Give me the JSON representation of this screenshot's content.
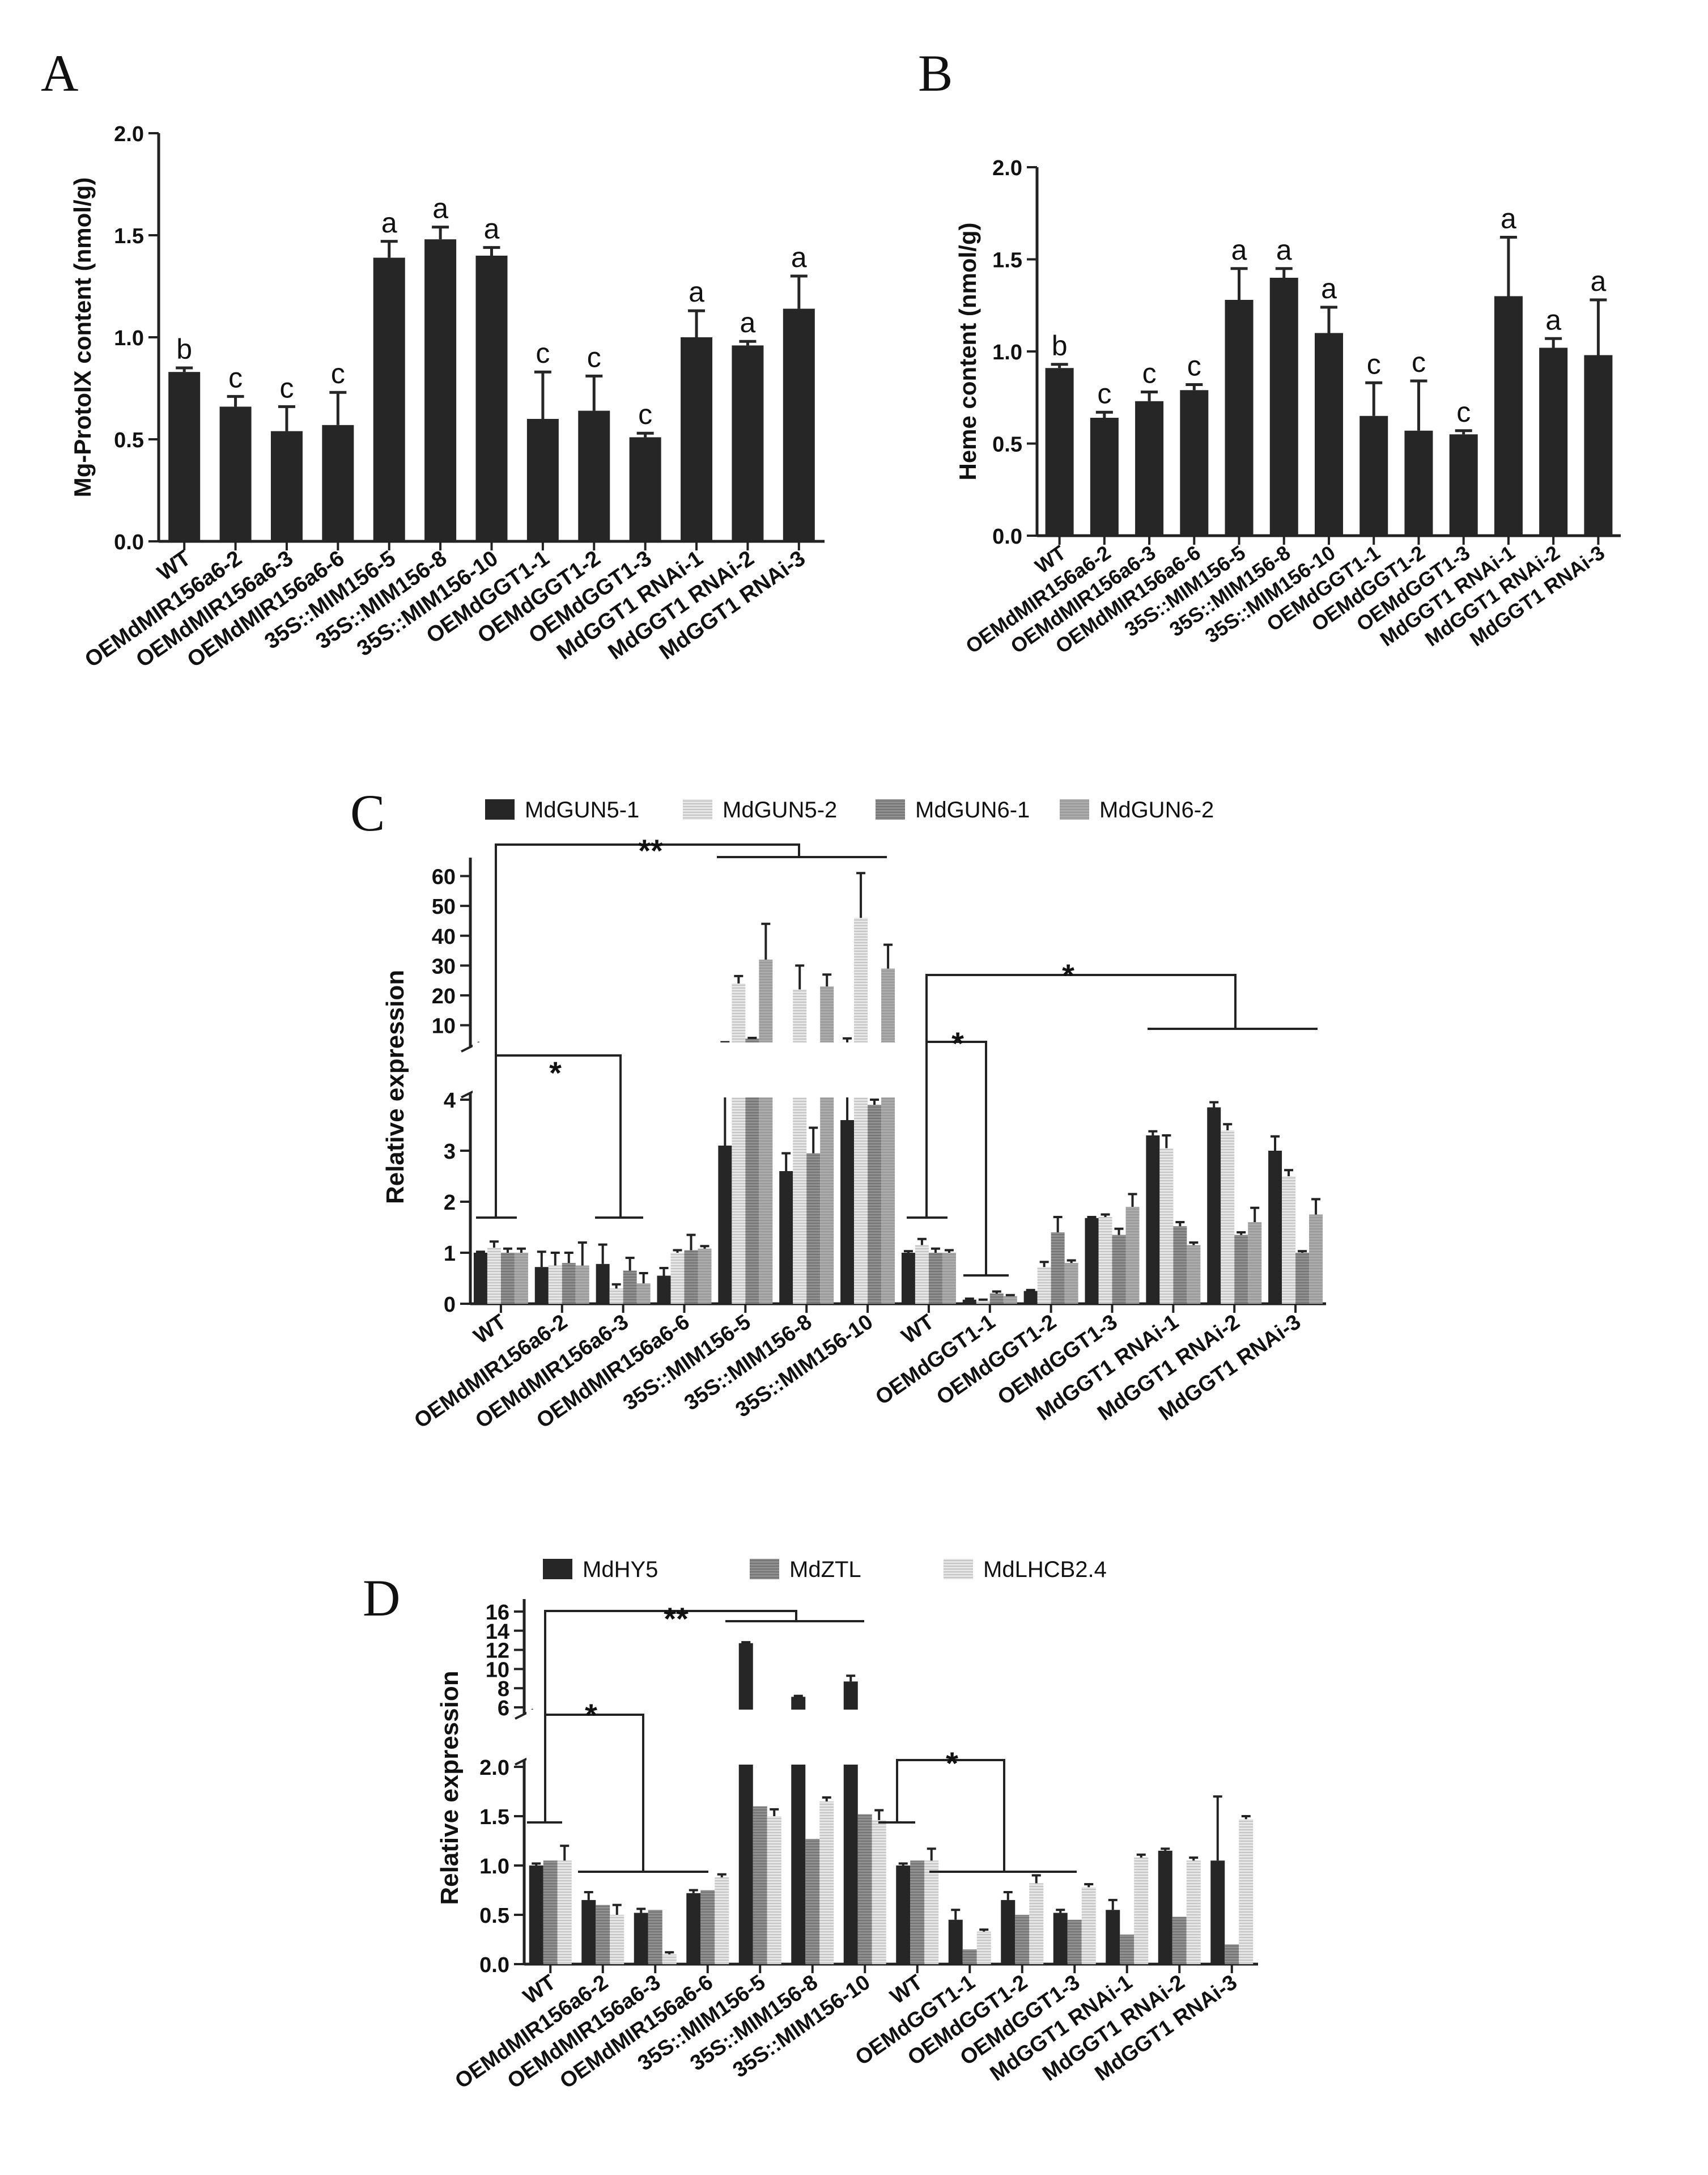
{
  "panels": {
    "A": "A",
    "B": "B",
    "C": "C",
    "D": "D"
  },
  "colors": {
    "dark": "#262626",
    "light": "#dadada",
    "mid": "#8a8a8a",
    "grey": "#a6a6a6"
  },
  "chart_data": [
    {
      "id": "A",
      "type": "bar",
      "ylabel": "Mg-ProtoIX content (nmol/g)",
      "ylim": [
        0,
        2.0
      ],
      "yticks": [
        "0.0",
        "0.5",
        "1.0",
        "1.5",
        "2.0"
      ],
      "categories": [
        "WT",
        "OEMdMIR156a6-2",
        "OEMdMIR156a6-3",
        "OEMdMIR156a6-6",
        "35S::MIM156-5",
        "35S::MIM156-8",
        "35S::MIM156-10",
        "OEMdGGT1-1",
        "OEMdGGT1-2",
        "OEMdGGT1-3",
        "MdGGT1 RNAi-1",
        "MdGGT1 RNAi-2",
        "MdGGT1 RNAi-3"
      ],
      "values": [
        0.83,
        0.66,
        0.54,
        0.57,
        1.39,
        1.48,
        1.4,
        0.6,
        0.64,
        0.51,
        1.0,
        0.96,
        1.14
      ],
      "errors": [
        0.02,
        0.05,
        0.12,
        0.16,
        0.08,
        0.06,
        0.04,
        0.23,
        0.17,
        0.02,
        0.13,
        0.02,
        0.16
      ],
      "letters": [
        "b",
        "c",
        "c",
        "c",
        "a",
        "a",
        "a",
        "c",
        "c",
        "c",
        "a",
        "a",
        "a"
      ]
    },
    {
      "id": "B",
      "type": "bar",
      "ylabel": "Heme content (nmol/g)",
      "ylim": [
        0,
        2.0
      ],
      "yticks": [
        "0.0",
        "0.5",
        "1.0",
        "1.5",
        "2.0"
      ],
      "categories": [
        "WT",
        "OEMdMIR156a6-2",
        "OEMdMIR156a6-3",
        "OEMdMIR156a6-6",
        "35S::MIM156-5",
        "35S::MIM156-8",
        "35S::MIM156-10",
        "OEMdGGT1-1",
        "OEMdGGT1-2",
        "OEMdGGT1-3",
        "MdGGT1 RNAi-1",
        "MdGGT1 RNAi-2",
        "MdGGT1 RNAi-3"
      ],
      "values": [
        0.91,
        0.64,
        0.73,
        0.79,
        1.28,
        1.4,
        1.1,
        0.65,
        0.57,
        0.55,
        1.3,
        1.02,
        0.98
      ],
      "errors": [
        0.02,
        0.03,
        0.05,
        0.03,
        0.17,
        0.05,
        0.14,
        0.18,
        0.27,
        0.02,
        0.32,
        0.05,
        0.3
      ],
      "letters": [
        "b",
        "c",
        "c",
        "c",
        "a",
        "a",
        "a",
        "c",
        "c",
        "c",
        "a",
        "a",
        "a"
      ]
    },
    {
      "id": "C",
      "type": "bar",
      "ylabel": "Relative expression",
      "legend": [
        "MdGUN5-1",
        "MdGUN5-2",
        "MdGUN6-1",
        "MdGUN6-2"
      ],
      "yticks_lower": [
        "0",
        "1",
        "2",
        "3",
        "4"
      ],
      "yticks_upper": [
        "10",
        "20",
        "30",
        "40",
        "50",
        "60"
      ],
      "categories": [
        "WT",
        "OEMdMIR156a6-2",
        "OEMdMIR156a6-3",
        "OEMdMIR156a6-6",
        "35S::MIM156-5",
        "35S::MIM156-8",
        "35S::MIM156-10",
        "WT",
        "OEMdGGT1-1",
        "OEMdGGT1-2",
        "OEMdGGT1-3",
        "MdGGT1 RNAi-1",
        "MdGGT1 RNAi-2",
        "MdGGT1 RNAi-3"
      ],
      "series": [
        {
          "name": "MdGUN5-1",
          "values": [
            1.0,
            0.72,
            0.78,
            0.55,
            3.1,
            2.6,
            3.6,
            1.0,
            0.08,
            0.25,
            1.68,
            3.3,
            3.85,
            3.0
          ],
          "errors": [
            0.02,
            0.3,
            0.38,
            0.15,
            1.2,
            0.35,
            2.0,
            0.03,
            0.02,
            0.02,
            0.02,
            0.08,
            0.1,
            0.28
          ]
        },
        {
          "name": "MdGUN5-2",
          "values": [
            1.1,
            0.75,
            0.3,
            1.0,
            24.0,
            22.0,
            46.0,
            1.15,
            0.06,
            0.72,
            1.7,
            3.05,
            3.4,
            2.5
          ],
          "errors": [
            0.12,
            0.25,
            0.08,
            0.05,
            2.5,
            8.0,
            15.0,
            0.12,
            0.02,
            0.1,
            0.05,
            0.25,
            0.12,
            0.12
          ]
        },
        {
          "name": "MdGUN6-1",
          "values": [
            1.0,
            0.8,
            0.65,
            1.05,
            5.5,
            2.95,
            3.9,
            1.0,
            0.2,
            1.4,
            1.35,
            1.52,
            1.35,
            1.0
          ],
          "errors": [
            0.08,
            0.2,
            0.25,
            0.3,
            0.25,
            0.5,
            0.1,
            0.08,
            0.04,
            0.3,
            0.12,
            0.08,
            0.05,
            0.03
          ]
        },
        {
          "name": "MdGUN6-2",
          "values": [
            1.0,
            0.75,
            0.4,
            1.08,
            32.0,
            23.0,
            29.0,
            1.0,
            0.15,
            0.8,
            1.9,
            1.15,
            1.6,
            1.75
          ],
          "errors": [
            0.08,
            0.45,
            0.2,
            0.05,
            12.0,
            4.0,
            8.0,
            0.05,
            0.02,
            0.05,
            0.25,
            0.05,
            0.28,
            0.3
          ]
        }
      ],
      "annotations": {
        "double_star": "**",
        "star": "*"
      }
    },
    {
      "id": "D",
      "type": "bar",
      "ylabel": "Relative expression",
      "legend": [
        "MdHY5",
        "MdZTL",
        "MdLHCB2.4"
      ],
      "yticks_lower": [
        "0.0",
        "0.5",
        "1.0",
        "1.5",
        "2.0"
      ],
      "yticks_upper": [
        "6",
        "8",
        "10",
        "12",
        "14",
        "16"
      ],
      "categories": [
        "WT",
        "OEMdMIR156a6-2",
        "OEMdMIR156a6-3",
        "OEMdMIR156a6-6",
        "35S::MIM156-5",
        "35S::MIM156-8",
        "35S::MIM156-10",
        "WT",
        "OEMdGGT1-1",
        "OEMdGGT1-2",
        "OEMdGGT1-3",
        "MdGGT1 RNAi-1",
        "MdGGT1 RNAi-2",
        "MdGGT1 RNAi-3"
      ],
      "series": [
        {
          "name": "MdHY5",
          "values": [
            1.0,
            0.65,
            0.52,
            0.72,
            12.7,
            7.1,
            8.7,
            1.0,
            0.45,
            0.65,
            0.52,
            0.55,
            1.15,
            1.05
          ],
          "errors": [
            0.02,
            0.08,
            0.04,
            0.03,
            0.1,
            0.1,
            0.6,
            0.02,
            0.1,
            0.08,
            0.03,
            0.1,
            0.02,
            0.65
          ]
        },
        {
          "name": "MdZTL",
          "values": [
            1.05,
            0.6,
            0.55,
            0.75,
            1.6,
            1.27,
            1.52,
            1.05,
            0.15,
            0.5,
            0.45,
            0.3,
            0.48,
            0.2
          ]
        },
        {
          "name": "MdLHCB2.4",
          "values": [
            1.05,
            0.5,
            0.1,
            0.88,
            1.5,
            1.65,
            1.46,
            1.05,
            0.33,
            0.82,
            0.78,
            1.08,
            1.05,
            1.47
          ],
          "errors": [
            0.15,
            0.1,
            0.02,
            0.03,
            0.07,
            0.04,
            0.1,
            0.12,
            0.02,
            0.08,
            0.03,
            0.03,
            0.03,
            0.03
          ]
        }
      ],
      "annotations": {
        "double_star": "**",
        "star": "*"
      }
    }
  ]
}
